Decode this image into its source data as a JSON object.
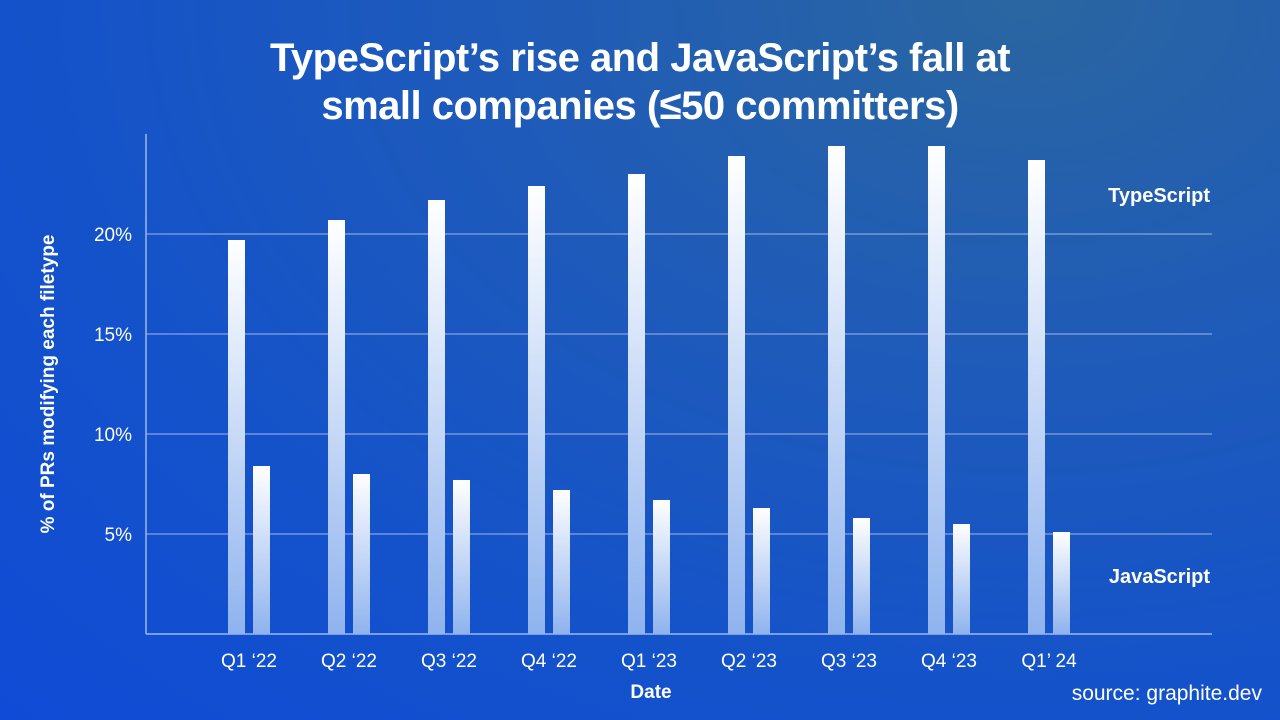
{
  "chart_data": {
    "type": "bar",
    "title_lines": [
      "TypeScript’s rise and JavaScript’s fall at",
      "small companies (≤50 committers)"
    ],
    "xlabel": "Date",
    "ylabel": "% of PRs modifying each filetype",
    "categories": [
      "Q1 ‘22",
      "Q2 ‘22",
      "Q3 ‘22",
      "Q4 ‘22",
      "Q1 ‘23",
      "Q2 ‘23",
      "Q3 ‘23",
      "Q4 ‘23",
      "Q1’ 24"
    ],
    "series": [
      {
        "name": "TypeScript",
        "values": [
          19.7,
          20.7,
          21.7,
          22.4,
          23.0,
          23.9,
          24.4,
          24.4,
          23.7
        ]
      },
      {
        "name": "JavaScript",
        "values": [
          8.4,
          8.0,
          7.7,
          7.2,
          6.7,
          6.3,
          5.8,
          5.5,
          5.1
        ]
      }
    ],
    "yticks": [
      5,
      10,
      15,
      20
    ],
    "ytick_labels": [
      "5%",
      "10%",
      "15%",
      "20%"
    ],
    "ylim": [
      0,
      25
    ],
    "grid": true,
    "legend": "right, inline labels",
    "colors": {
      "bar_top": "#ffffff",
      "bar_bottom": "#8fb3ee",
      "grid": "#9db8e8"
    }
  },
  "source": "source: graphite.dev"
}
